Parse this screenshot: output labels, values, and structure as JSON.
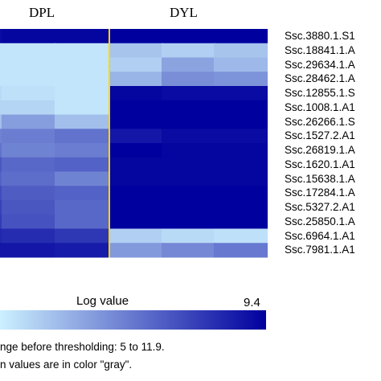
{
  "groups": {
    "left": "DPL",
    "right": "DYL"
  },
  "chart_data": {
    "type": "heatmap",
    "title": "",
    "columns_group_labels": [
      "DPL",
      "DYL"
    ],
    "columns": [
      "",
      "",
      "",
      "",
      "",
      ""
    ],
    "rows": [
      "Ssc.3880.1.S1",
      "Ssc.18841.1.A",
      "Ssc.29634.1.A",
      "Ssc.28462.1.A",
      "Ssc.12855.1.S",
      "Ssc.1008.1.A1",
      "Ssc.26266.1.S",
      "Ssc.1527.2.A1",
      "Ssc.26819.1.A",
      "Ssc.1620.1.A1",
      "Ssc.15638.1.A",
      "Ssc.17284.1.A",
      "Ssc.5327.2.A1",
      "Ssc.25850.1.A",
      "Ssc.6964.1.A1",
      "Ssc.7981.1.A1"
    ],
    "values": [
      [
        9.2,
        9.3,
        9.3,
        9.4,
        9.4,
        9.4
      ],
      [
        5.2,
        5.2,
        5.2,
        5.8,
        5.6,
        5.8
      ],
      [
        5.2,
        5.2,
        5.2,
        5.6,
        6.4,
        6.0
      ],
      [
        5.2,
        5.2,
        5.2,
        6.1,
        6.8,
        6.7
      ],
      [
        5.4,
        5.3,
        5.2,
        9.3,
        9.2,
        9.2
      ],
      [
        5.5,
        5.5,
        5.2,
        9.4,
        9.4,
        9.4
      ],
      [
        5.9,
        6.5,
        5.9,
        9.4,
        9.4,
        9.4
      ],
      [
        7.0,
        7.1,
        7.3,
        9.0,
        9.2,
        9.2
      ],
      [
        7.3,
        7.0,
        7.1,
        9.4,
        9.3,
        9.3
      ],
      [
        7.8,
        7.5,
        7.6,
        9.3,
        9.3,
        9.3
      ],
      [
        7.6,
        7.4,
        7.0,
        9.3,
        9.3,
        9.3
      ],
      [
        8.0,
        7.7,
        7.6,
        9.4,
        9.4,
        9.4
      ],
      [
        8.2,
        7.8,
        7.5,
        9.4,
        9.4,
        9.4
      ],
      [
        8.3,
        7.9,
        7.5,
        9.4,
        9.4,
        9.4
      ],
      [
        8.7,
        8.6,
        8.4,
        5.6,
        5.4,
        5.3
      ],
      [
        9.0,
        9.0,
        8.9,
        6.6,
        6.9,
        7.2
      ]
    ],
    "scale": {
      "label": "Log value",
      "min": 5.0,
      "max": 9.4,
      "max_label": "9.4",
      "low_color": "#ccf0ff",
      "high_color": "#00009e"
    },
    "divider_color": "#ffd800",
    "notes": [
      "nge before thresholding: 5 to 11.9.",
      "n values are in color \"gray\"."
    ]
  }
}
